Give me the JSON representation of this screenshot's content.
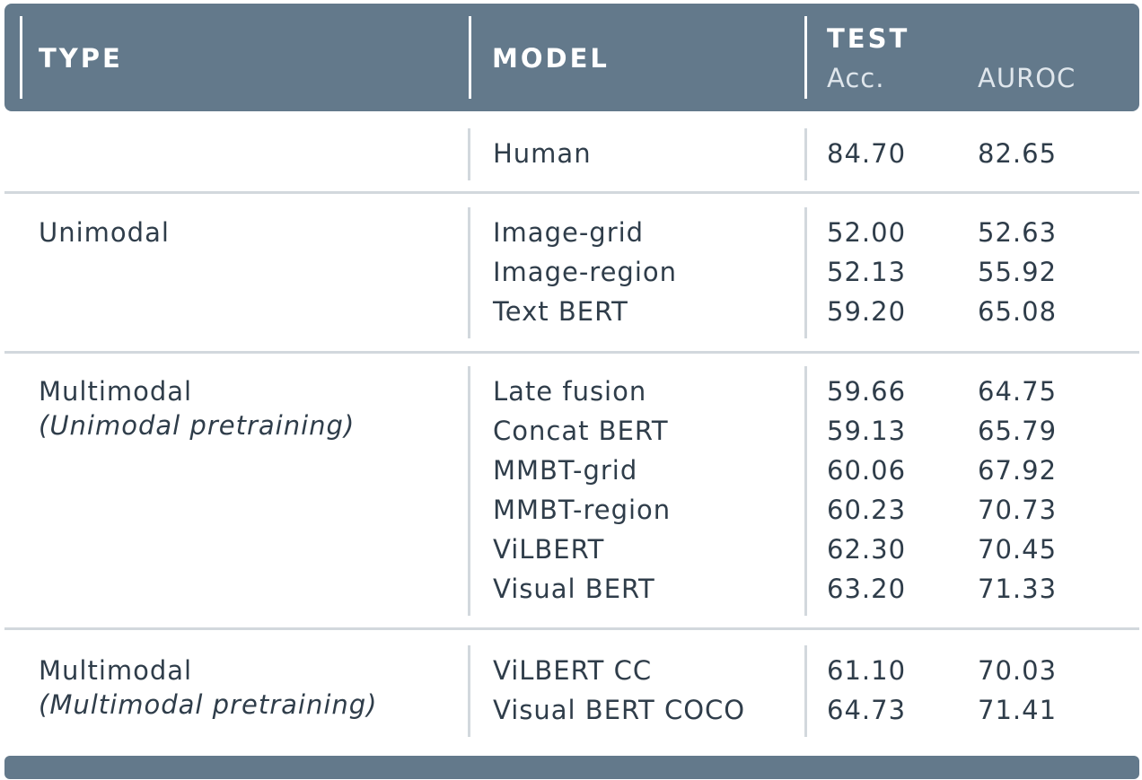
{
  "chart_data": {
    "type": "table",
    "columns": {
      "type": "TYPE",
      "model": "MODEL",
      "test": "TEST",
      "acc": "Acc.",
      "auroc": "AUROC"
    },
    "groups": [
      {
        "type": "",
        "subtype": "",
        "rows": [
          {
            "model": "Human",
            "acc": "84.70",
            "auroc": "82.65"
          }
        ]
      },
      {
        "type": "Unimodal",
        "subtype": "",
        "rows": [
          {
            "model": "Image-grid",
            "acc": "52.00",
            "auroc": "52.63"
          },
          {
            "model": "Image-region",
            "acc": "52.13",
            "auroc": "55.92"
          },
          {
            "model": "Text BERT",
            "acc": "59.20",
            "auroc": "65.08"
          }
        ]
      },
      {
        "type": "Multimodal",
        "subtype": "(Unimodal pretraining)",
        "rows": [
          {
            "model": "Late fusion",
            "acc": "59.66",
            "auroc": "64.75"
          },
          {
            "model": "Concat BERT",
            "acc": "59.13",
            "auroc": "65.79"
          },
          {
            "model": "MMBT-grid",
            "acc": "60.06",
            "auroc": "67.92"
          },
          {
            "model": "MMBT-region",
            "acc": "60.23",
            "auroc": "70.73"
          },
          {
            "model": "ViLBERT",
            "acc": "62.30",
            "auroc": "70.45"
          },
          {
            "model": "Visual BERT",
            "acc": "63.20",
            "auroc": "71.33"
          }
        ]
      },
      {
        "type": "Multimodal",
        "subtype": "(Multimodal pretraining)",
        "rows": [
          {
            "model": "ViLBERT CC",
            "acc": "61.10",
            "auroc": "70.03"
          },
          {
            "model": "Visual BERT COCO",
            "acc": "64.73",
            "auroc": "71.41"
          }
        ]
      }
    ]
  }
}
